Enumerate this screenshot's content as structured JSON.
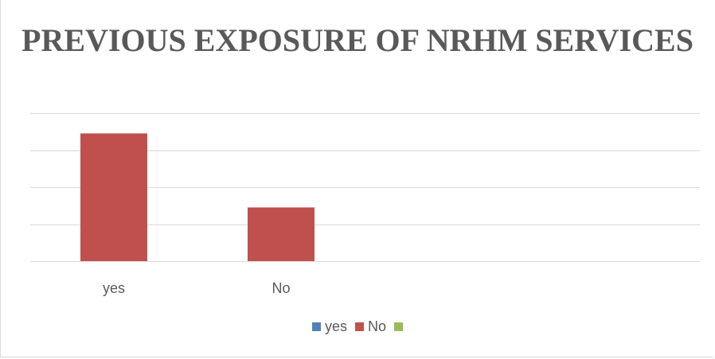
{
  "chart_data": {
    "type": "bar",
    "title": "PREVIOUS EXPOSURE OF NRHM SERVICES",
    "categories": [
      "yes",
      "No"
    ],
    "values": [
      3.45,
      1.45
    ],
    "ylim": [
      0,
      4
    ],
    "grid": true,
    "bar_color": "#C0504D",
    "legend": {
      "position": "bottom",
      "entries": [
        {
          "label": "yes",
          "color": "#4F81BD"
        },
        {
          "label": "No",
          "color": "#C0504D"
        },
        {
          "label": "",
          "color": "#9BBB59"
        }
      ]
    }
  }
}
